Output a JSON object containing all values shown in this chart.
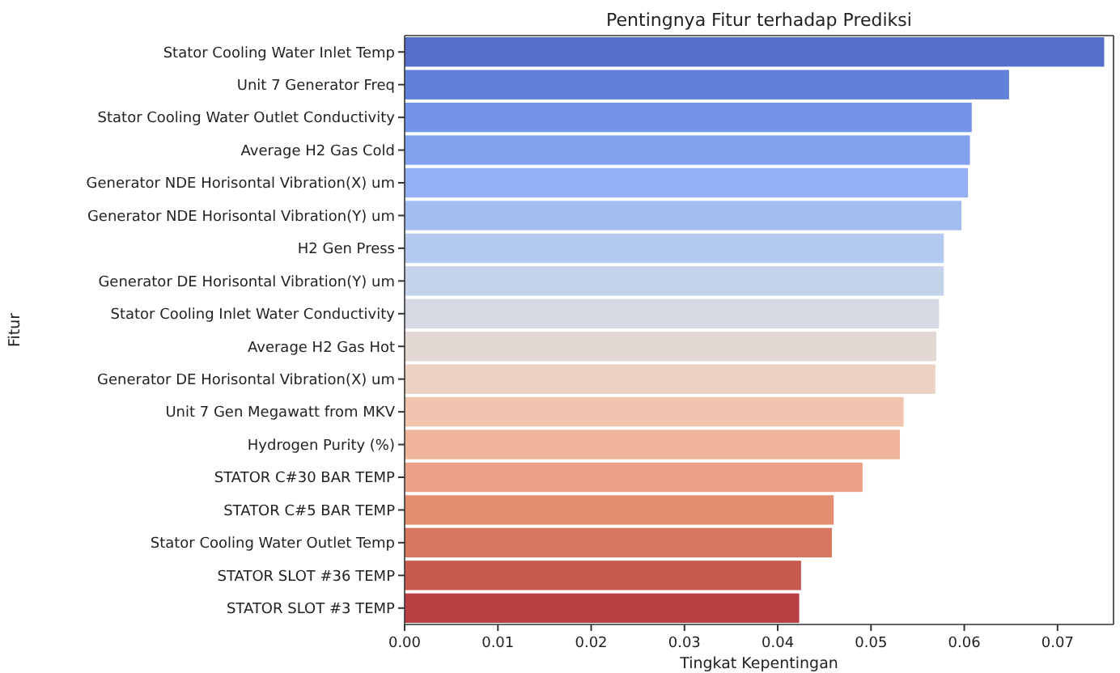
{
  "chart_data": {
    "type": "bar",
    "orientation": "horizontal",
    "title": "Pentingnya Fitur terhadap Prediksi",
    "xlabel": "Tingkat Kepentingan",
    "ylabel": "Fitur",
    "categories": [
      "Stator Cooling Water Inlet  Temp",
      "Unit 7 Generator Freq",
      "Stator Cooling Water Outlet Conductivity",
      "Average H2 Gas Cold",
      "Generator NDE  Horisontal  Vibration(X) um",
      "Generator NDE  Horisontal  Vibration(Y) um",
      "H2 Gen Press",
      "Generator DE  Horisontal  Vibration(Y) um",
      "Stator Cooling Inlet Water Conductivity",
      "Average H2 Gas Hot",
      "Generator DE  Horisontal  Vibration(X) um",
      "Unit 7 Gen Megawatt from MKV",
      "Hydrogen Purity (%)",
      "STATOR C#30 BAR TEMP",
      "STATOR C#5 BAR TEMP",
      "Stator Cooling Water Outlet Temp",
      "STATOR SLOT #36 TEMP",
      "STATOR SLOT #3 TEMP"
    ],
    "values": [
      0.075,
      0.0648,
      0.0608,
      0.0606,
      0.0604,
      0.0597,
      0.0578,
      0.0578,
      0.0573,
      0.057,
      0.0569,
      0.0535,
      0.0531,
      0.0491,
      0.046,
      0.0458,
      0.0425,
      0.0423
    ],
    "colors": [
      "#5470cc",
      "#6080da",
      "#7394e8",
      "#82a2ee",
      "#92b0f3",
      "#a3bdf3",
      "#b4c9f0",
      "#c4d2ea",
      "#d4d9e2",
      "#e2d9d4",
      "#ebd2c3",
      "#f0c4ae",
      "#f0b49a",
      "#eca286",
      "#e38e71",
      "#d7765e",
      "#c85a50",
      "#b83f42"
    ],
    "xlim": [
      0,
      0.076
    ],
    "xticks": [
      {
        "value": 0,
        "label": "0.00"
      },
      {
        "value": 0.01,
        "label": "0.01"
      },
      {
        "value": 0.02,
        "label": "0.02"
      },
      {
        "value": 0.03,
        "label": "0.03"
      },
      {
        "value": 0.04,
        "label": "0.04"
      },
      {
        "value": 0.05,
        "label": "0.05"
      },
      {
        "value": 0.06,
        "label": "0.06"
      },
      {
        "value": 0.07,
        "label": "0.07"
      }
    ]
  }
}
